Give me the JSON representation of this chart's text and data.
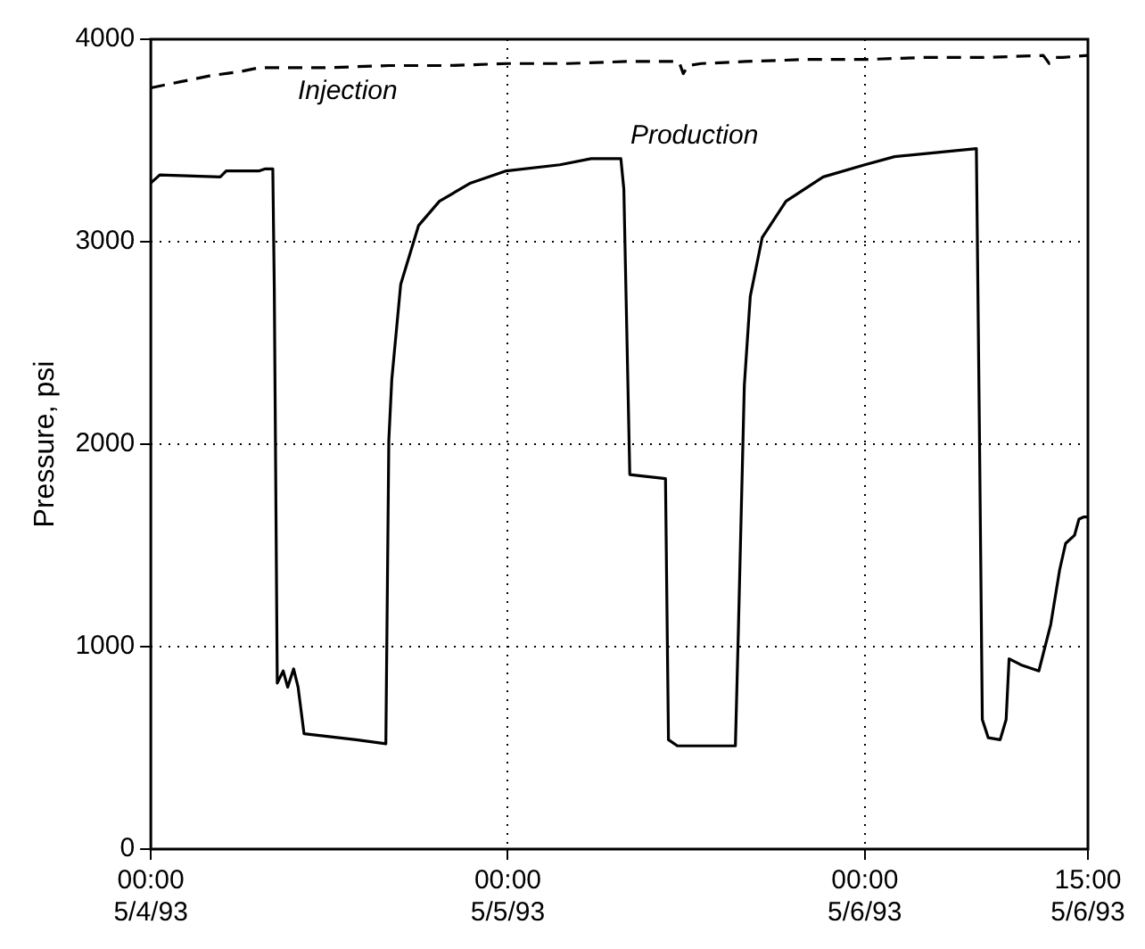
{
  "chart_data": {
    "type": "line",
    "ylabel": "Pressure, psi",
    "xlim": [
      "1993-05-04T00:00",
      "1993-05-06T15:00"
    ],
    "xticks": [
      {
        "value": "1993-05-04T00:00",
        "label": "00:00 5/4/93"
      },
      {
        "value": "1993-05-05T00:00",
        "label": "00:00 5/5/93"
      },
      {
        "value": "1993-05-06T00:00",
        "label": "00:00 5/6/93"
      },
      {
        "value": "1993-05-06T15:00",
        "label": "15:00 5/6/93"
      }
    ],
    "ylim": [
      0,
      4000
    ],
    "yticks": [
      0,
      1000,
      2000,
      3000,
      4000
    ],
    "grid": true,
    "legend": false,
    "marker": "none",
    "series": [
      {
        "name": "Injection",
        "color": "#000000",
        "line_style": "dashed",
        "x": [
          "1993-05-04T00:00",
          "1993-05-04T02:00",
          "1993-05-04T04:00",
          "1993-05-04T06:00",
          "1993-05-04T07:18",
          "1993-05-04T09:00",
          "1993-05-04T12:00",
          "1993-05-04T16:00",
          "1993-05-04T20:00",
          "1993-05-05T00:00",
          "1993-05-05T04:00",
          "1993-05-05T08:00",
          "1993-05-05T11:30",
          "1993-05-05T11:48",
          "1993-05-05T12:06",
          "1993-05-05T13:00",
          "1993-05-05T16:00",
          "1993-05-05T20:00",
          "1993-05-06T00:00",
          "1993-05-06T04:00",
          "1993-05-06T08:00",
          "1993-05-06T12:00",
          "1993-05-06T12:24",
          "1993-05-06T12:48",
          "1993-05-06T13:18",
          "1993-05-06T15:00"
        ],
        "values": [
          3760,
          3790,
          3820,
          3840,
          3860,
          3860,
          3860,
          3870,
          3870,
          3880,
          3880,
          3890,
          3890,
          3830,
          3870,
          3880,
          3890,
          3900,
          3900,
          3910,
          3910,
          3920,
          3880,
          3910,
          3910,
          3920
        ]
      },
      {
        "name": "Production",
        "color": "#000000",
        "line_style": "solid",
        "x": [
          "1993-05-04T00:00",
          "1993-05-04T00:36",
          "1993-05-04T04:40",
          "1993-05-04T05:04",
          "1993-05-04T07:18",
          "1993-05-04T07:42",
          "1993-05-04T08:12",
          "1993-05-04T08:18",
          "1993-05-04T08:30",
          "1993-05-04T08:54",
          "1993-05-04T09:12",
          "1993-05-04T09:36",
          "1993-05-04T09:54",
          "1993-05-04T10:18",
          "1993-05-04T13:48",
          "1993-05-04T15:48",
          "1993-05-04T16:00",
          "1993-05-04T16:12",
          "1993-05-04T16:48",
          "1993-05-04T18:00",
          "1993-05-04T19:24",
          "1993-05-04T21:30",
          "1993-05-04T23:54",
          "1993-05-05T03:30",
          "1993-05-05T05:36",
          "1993-05-05T07:36",
          "1993-05-05T07:48",
          "1993-05-05T08:12",
          "1993-05-05T10:36",
          "1993-05-05T10:48",
          "1993-05-05T11:24",
          "1993-05-05T15:18",
          "1993-05-05T15:30",
          "1993-05-05T15:54",
          "1993-05-05T16:18",
          "1993-05-05T17:06",
          "1993-05-05T18:42",
          "1993-05-05T21:12",
          "1993-05-06T00:00",
          "1993-05-06T02:00",
          "1993-05-06T07:30",
          "1993-05-06T07:42",
          "1993-05-06T07:54",
          "1993-05-06T08:18",
          "1993-05-06T09:06",
          "1993-05-06T09:30",
          "1993-05-06T09:42",
          "1993-05-06T10:30",
          "1993-05-06T11:42",
          "1993-05-06T12:30",
          "1993-05-06T13:06",
          "1993-05-06T13:30",
          "1993-05-06T14:06",
          "1993-05-06T14:24",
          "1993-05-06T14:42",
          "1993-05-06T15:00"
        ],
        "values": [
          3290,
          3330,
          3320,
          3350,
          3350,
          3360,
          3360,
          2770,
          820,
          880,
          800,
          890,
          800,
          570,
          540,
          520,
          2020,
          2320,
          2790,
          3080,
          3200,
          3290,
          3350,
          3380,
          3410,
          3410,
          3260,
          1850,
          1830,
          540,
          510,
          510,
          1080,
          2290,
          2730,
          3020,
          3200,
          3320,
          3380,
          3420,
          3460,
          2110,
          640,
          550,
          540,
          640,
          940,
          910,
          880,
          1110,
          1380,
          1510,
          1550,
          1630,
          1640,
          1640
        ]
      }
    ]
  }
}
